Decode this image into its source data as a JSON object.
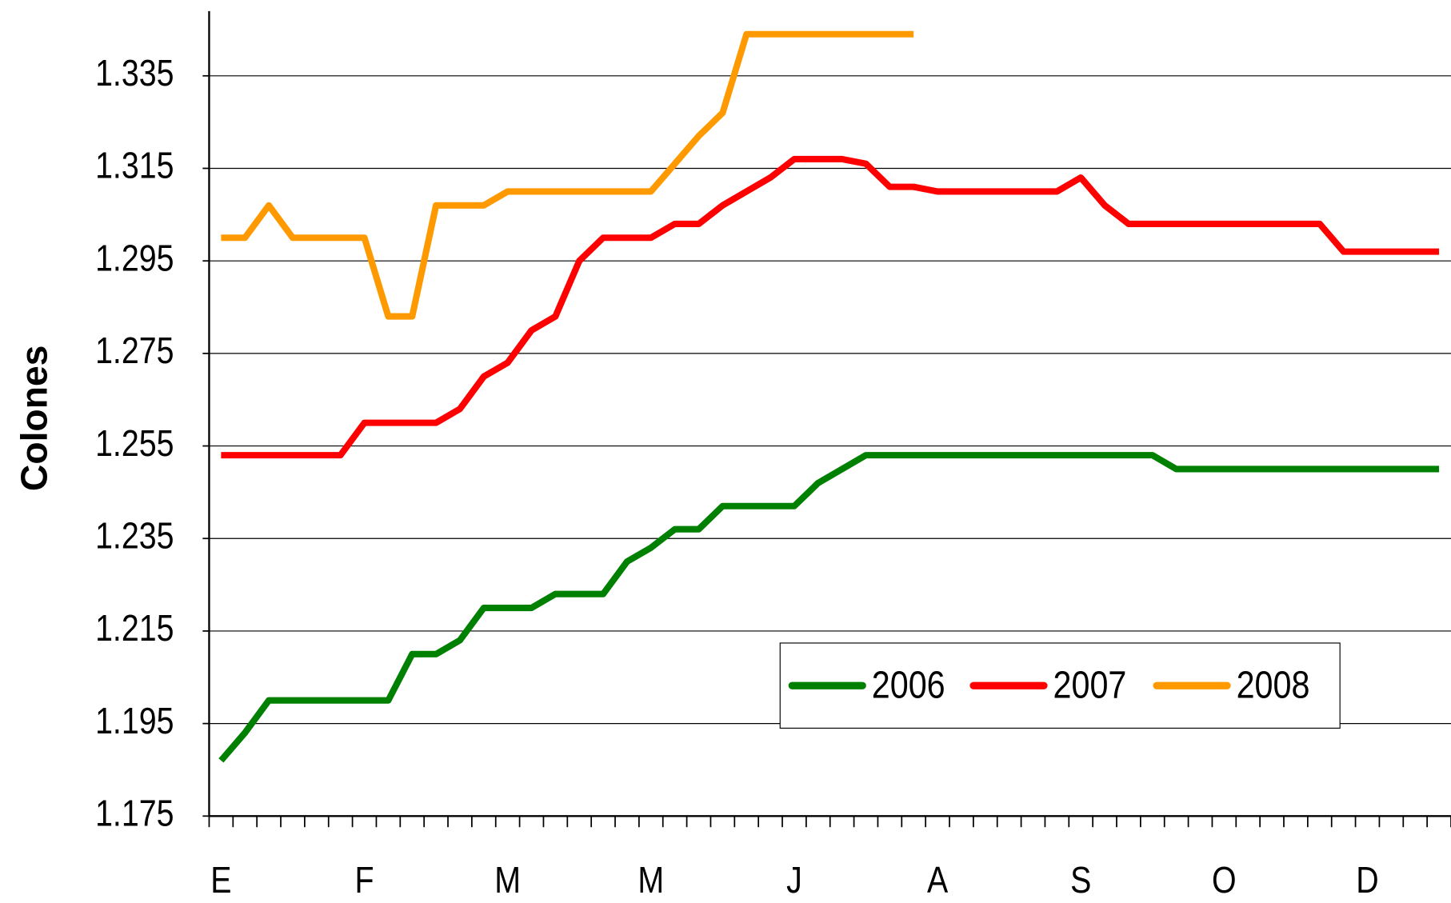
{
  "chart_data": {
    "type": "line",
    "y_label": "Colones",
    "categories": [
      "E",
      null,
      null,
      null,
      null,
      null,
      "F",
      null,
      null,
      null,
      null,
      null,
      "M",
      null,
      null,
      null,
      null,
      null,
      "M",
      null,
      null,
      null,
      null,
      null,
      "J",
      null,
      null,
      null,
      null,
      null,
      "A",
      null,
      null,
      null,
      null,
      null,
      "S",
      null,
      null,
      null,
      null,
      null,
      "O",
      null,
      null,
      null,
      null,
      null,
      "D",
      null,
      null,
      null
    ],
    "series": [
      {
        "name": "2006",
        "color": "#008000",
        "values": [
          1.187,
          1.193,
          1.2,
          1.2,
          1.2,
          1.2,
          1.2,
          1.2,
          1.21,
          1.21,
          1.213,
          1.22,
          1.22,
          1.22,
          1.223,
          1.223,
          1.223,
          1.23,
          1.233,
          1.237,
          1.237,
          1.242,
          1.242,
          1.242,
          1.242,
          1.247,
          1.25,
          1.253,
          1.253,
          1.253,
          1.253,
          1.253,
          1.253,
          1.253,
          1.253,
          1.253,
          1.253,
          1.253,
          1.253,
          1.253,
          1.25,
          1.25,
          1.25,
          1.25,
          1.25,
          1.25,
          1.25,
          1.25,
          1.25,
          1.25,
          1.25,
          1.25
        ]
      },
      {
        "name": "2007",
        "color": "#ff0000",
        "values": [
          1.253,
          1.253,
          1.253,
          1.253,
          1.253,
          1.253,
          1.26,
          1.26,
          1.26,
          1.26,
          1.263,
          1.27,
          1.273,
          1.28,
          1.283,
          1.295,
          1.3,
          1.3,
          1.3,
          1.303,
          1.303,
          1.307,
          1.31,
          1.313,
          1.317,
          1.317,
          1.317,
          1.316,
          1.311,
          1.311,
          1.31,
          1.31,
          1.31,
          1.31,
          1.31,
          1.31,
          1.313,
          1.307,
          1.303,
          1.303,
          1.303,
          1.303,
          1.303,
          1.303,
          1.303,
          1.303,
          1.303,
          1.297,
          1.297,
          1.297,
          1.297,
          1.297
        ]
      },
      {
        "name": "2008",
        "color": "#ff9900",
        "values": [
          1.3,
          1.3,
          1.307,
          1.3,
          1.3,
          1.3,
          1.3,
          1.283,
          1.283,
          1.307,
          1.307,
          1.307,
          1.31,
          1.31,
          1.31,
          1.31,
          1.31,
          1.31,
          1.31,
          1.316,
          1.322,
          1.327,
          1.344,
          1.344,
          1.344,
          1.344,
          1.344,
          1.344,
          1.344,
          1.344,
          null,
          null,
          null,
          null,
          null,
          null,
          null,
          null,
          null,
          null,
          null,
          null,
          null,
          null,
          null,
          null,
          null,
          null,
          null,
          null,
          null,
          null
        ]
      }
    ],
    "ylim": [
      1.175,
      1.349
    ],
    "yticks": [
      1.175,
      1.195,
      1.215,
      1.235,
      1.255,
      1.275,
      1.295,
      1.315,
      1.335
    ],
    "grid": true
  }
}
